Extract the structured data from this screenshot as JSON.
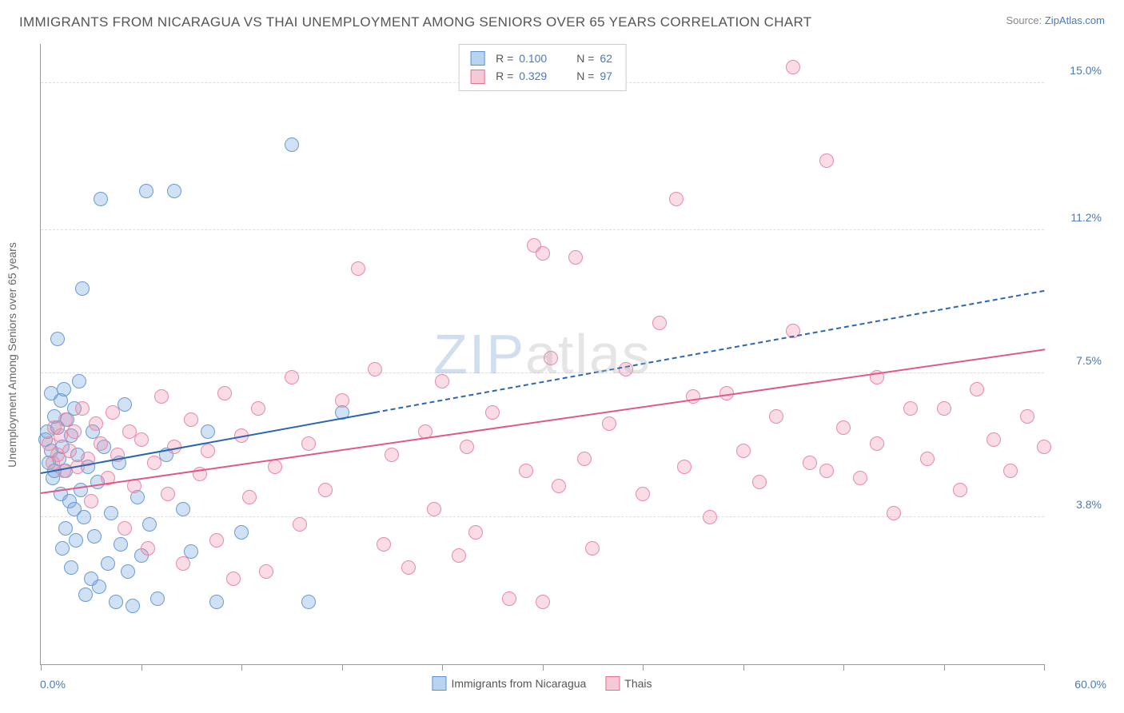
{
  "title": "IMMIGRANTS FROM NICARAGUA VS THAI UNEMPLOYMENT AMONG SENIORS OVER 65 YEARS CORRELATION CHART",
  "source_prefix": "Source: ",
  "source_link": "ZipAtlas.com",
  "ylabel": "Unemployment Among Seniors over 65 years",
  "chart": {
    "type": "scatter",
    "background_color": "#ffffff",
    "grid_color": "#dddddd",
    "axis_color": "#999999",
    "label_color": "#4a7ab8",
    "text_color": "#555555",
    "marker_radius": 9,
    "marker_opacity_fill": 0.35,
    "xlim": [
      0,
      60
    ],
    "ylim": [
      0,
      16
    ],
    "x_start_label": "0.0%",
    "x_end_label": "60.0%",
    "y_gridlines": [
      3.8,
      7.5,
      11.2,
      15.0
    ],
    "y_grid_labels": [
      "3.8%",
      "7.5%",
      "11.2%",
      "15.0%"
    ],
    "x_ticks": [
      0,
      6,
      12,
      18,
      24,
      30,
      36,
      42,
      48,
      54,
      60
    ],
    "watermark": {
      "z": "ZIP",
      "rest": "atlas"
    }
  },
  "legend_box": {
    "rows": [
      {
        "swatch_fill": "#b9d4f0",
        "swatch_border": "#5a91cf",
        "r_label": "R =",
        "r_val": "0.100",
        "n_label": "N =",
        "n_val": "62"
      },
      {
        "swatch_fill": "#f6c9d6",
        "swatch_border": "#e36f94",
        "r_label": "R =",
        "r_val": "0.329",
        "n_label": "N =",
        "n_val": "97"
      }
    ]
  },
  "axis_legend": [
    {
      "swatch_fill": "#b9d4f0",
      "swatch_border": "#5a91cf",
      "label": "Immigrants from Nicaragua"
    },
    {
      "swatch_fill": "#f6c9d6",
      "swatch_border": "#e36f94",
      "label": "Thais"
    }
  ],
  "series": [
    {
      "name": "nicaragua",
      "fill": "rgba(120,168,220,0.35)",
      "stroke": "#6a9bd4",
      "trend": {
        "color": "#2d66b0",
        "solid_x_range": [
          0,
          20
        ],
        "dash_x_range": [
          20,
          60
        ],
        "y_at_x0": 4.9,
        "y_at_x60": 9.6,
        "width": 2.5
      },
      "points": [
        [
          0.3,
          5.8
        ],
        [
          0.4,
          6.0
        ],
        [
          0.5,
          5.2
        ],
        [
          0.6,
          5.5
        ],
        [
          0.6,
          7.0
        ],
        [
          0.7,
          4.8
        ],
        [
          0.8,
          6.4
        ],
        [
          0.8,
          5.0
        ],
        [
          1.0,
          6.1
        ],
        [
          1.0,
          8.4
        ],
        [
          1.1,
          5.3
        ],
        [
          1.2,
          4.4
        ],
        [
          1.2,
          6.8
        ],
        [
          1.3,
          5.6
        ],
        [
          1.3,
          3.0
        ],
        [
          1.4,
          7.1
        ],
        [
          1.5,
          5.0
        ],
        [
          1.5,
          3.5
        ],
        [
          1.6,
          6.3
        ],
        [
          1.7,
          4.2
        ],
        [
          1.8,
          5.9
        ],
        [
          1.8,
          2.5
        ],
        [
          2.0,
          4.0
        ],
        [
          2.0,
          6.6
        ],
        [
          2.1,
          3.2
        ],
        [
          2.2,
          5.4
        ],
        [
          2.3,
          7.3
        ],
        [
          2.4,
          4.5
        ],
        [
          2.5,
          9.7
        ],
        [
          2.6,
          3.8
        ],
        [
          2.7,
          1.8
        ],
        [
          2.8,
          5.1
        ],
        [
          3.0,
          2.2
        ],
        [
          3.1,
          6.0
        ],
        [
          3.2,
          3.3
        ],
        [
          3.4,
          4.7
        ],
        [
          3.5,
          2.0
        ],
        [
          3.6,
          12.0
        ],
        [
          3.8,
          5.6
        ],
        [
          4.0,
          2.6
        ],
        [
          4.2,
          3.9
        ],
        [
          4.5,
          1.6
        ],
        [
          4.7,
          5.2
        ],
        [
          4.8,
          3.1
        ],
        [
          5.0,
          6.7
        ],
        [
          5.2,
          2.4
        ],
        [
          5.5,
          1.5
        ],
        [
          5.8,
          4.3
        ],
        [
          6.0,
          2.8
        ],
        [
          6.3,
          12.2
        ],
        [
          6.5,
          3.6
        ],
        [
          7.0,
          1.7
        ],
        [
          7.5,
          5.4
        ],
        [
          8.0,
          12.2
        ],
        [
          8.5,
          4.0
        ],
        [
          9.0,
          2.9
        ],
        [
          10.0,
          6.0
        ],
        [
          10.5,
          1.6
        ],
        [
          12.0,
          3.4
        ],
        [
          15.0,
          13.4
        ],
        [
          16.0,
          1.6
        ],
        [
          18.0,
          6.5
        ]
      ]
    },
    {
      "name": "thais",
      "fill": "rgba(235,140,170,0.3)",
      "stroke": "#e88aa8",
      "trend": {
        "color": "#e05a85",
        "solid_x_range": [
          0,
          60
        ],
        "dash_x_range": null,
        "y_at_x0": 4.4,
        "y_at_x60": 8.1,
        "width": 2.5
      },
      "points": [
        [
          0.5,
          5.7
        ],
        [
          0.7,
          5.2
        ],
        [
          0.8,
          6.1
        ],
        [
          1.0,
          5.4
        ],
        [
          1.2,
          5.9
        ],
        [
          1.4,
          5.0
        ],
        [
          1.5,
          6.3
        ],
        [
          1.7,
          5.5
        ],
        [
          2.0,
          6.0
        ],
        [
          2.2,
          5.1
        ],
        [
          2.5,
          6.6
        ],
        [
          2.8,
          5.3
        ],
        [
          3.0,
          4.2
        ],
        [
          3.3,
          6.2
        ],
        [
          3.6,
          5.7
        ],
        [
          4.0,
          4.8
        ],
        [
          4.3,
          6.5
        ],
        [
          4.6,
          5.4
        ],
        [
          5.0,
          3.5
        ],
        [
          5.3,
          6.0
        ],
        [
          5.6,
          4.6
        ],
        [
          6.0,
          5.8
        ],
        [
          6.4,
          3.0
        ],
        [
          6.8,
          5.2
        ],
        [
          7.2,
          6.9
        ],
        [
          7.6,
          4.4
        ],
        [
          8.0,
          5.6
        ],
        [
          8.5,
          2.6
        ],
        [
          9.0,
          6.3
        ],
        [
          9.5,
          4.9
        ],
        [
          10.0,
          5.5
        ],
        [
          10.5,
          3.2
        ],
        [
          11.0,
          7.0
        ],
        [
          11.5,
          2.2
        ],
        [
          12.0,
          5.9
        ],
        [
          12.5,
          4.3
        ],
        [
          13.0,
          6.6
        ],
        [
          13.5,
          2.4
        ],
        [
          14.0,
          5.1
        ],
        [
          15.0,
          7.4
        ],
        [
          15.5,
          3.6
        ],
        [
          16.0,
          5.7
        ],
        [
          17.0,
          4.5
        ],
        [
          18.0,
          6.8
        ],
        [
          19.0,
          10.2
        ],
        [
          20.0,
          7.6
        ],
        [
          20.5,
          3.1
        ],
        [
          21.0,
          5.4
        ],
        [
          22.0,
          2.5
        ],
        [
          23.0,
          6.0
        ],
        [
          23.5,
          4.0
        ],
        [
          24.0,
          7.3
        ],
        [
          25.0,
          2.8
        ],
        [
          25.5,
          5.6
        ],
        [
          26.0,
          3.4
        ],
        [
          27.0,
          6.5
        ],
        [
          28.0,
          1.7
        ],
        [
          29.0,
          5.0
        ],
        [
          29.5,
          10.8
        ],
        [
          30.0,
          10.6
        ],
        [
          30.0,
          1.6
        ],
        [
          30.5,
          7.9
        ],
        [
          31.0,
          4.6
        ],
        [
          32.0,
          10.5
        ],
        [
          32.5,
          5.3
        ],
        [
          33.0,
          3.0
        ],
        [
          34.0,
          6.2
        ],
        [
          35.0,
          7.6
        ],
        [
          36.0,
          4.4
        ],
        [
          37.0,
          8.8
        ],
        [
          38.0,
          12.0
        ],
        [
          38.5,
          5.1
        ],
        [
          39.0,
          6.9
        ],
        [
          40.0,
          3.8
        ],
        [
          41.0,
          7.0
        ],
        [
          42.0,
          5.5
        ],
        [
          43.0,
          4.7
        ],
        [
          44.0,
          6.4
        ],
        [
          45.0,
          15.4
        ],
        [
          45.0,
          8.6
        ],
        [
          46.0,
          5.2
        ],
        [
          47.0,
          5.0
        ],
        [
          47.0,
          13.0
        ],
        [
          48.0,
          6.1
        ],
        [
          49.0,
          4.8
        ],
        [
          50.0,
          7.4
        ],
        [
          50.0,
          5.7
        ],
        [
          51.0,
          3.9
        ],
        [
          52.0,
          6.6
        ],
        [
          53.0,
          5.3
        ],
        [
          54.0,
          6.6
        ],
        [
          55.0,
          4.5
        ],
        [
          56.0,
          7.1
        ],
        [
          57.0,
          5.8
        ],
        [
          58.0,
          5.0
        ],
        [
          59.0,
          6.4
        ],
        [
          60.0,
          5.6
        ]
      ]
    }
  ]
}
